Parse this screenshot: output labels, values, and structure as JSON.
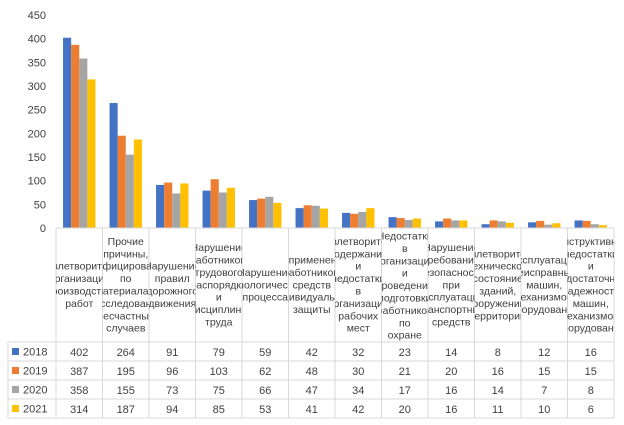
{
  "chart_data": {
    "type": "bar",
    "title": "",
    "xlabel": "",
    "ylabel": "",
    "ylim": [
      0,
      450
    ],
    "yticks": [
      0,
      50,
      100,
      150,
      200,
      250,
      300,
      350,
      400,
      450
    ],
    "grid": false,
    "legend": "data-table-left",
    "categories": [
      "Неудовлетворительная организация производства работ",
      "Прочие причины, квалифицированные по материалам расследования несчастных случаев",
      "Нарушение правил дорожного движения",
      "Нарушение работником трудового распорядка и дисциплины труда",
      "Нарушение технологического процесса",
      "Неприменение работником средств индивидуальной защиты",
      "Неудовлетворительное содержание и недостатки в организации рабочих мест",
      "Недостатки в организации и проведении подготовки работников по охране труда",
      "Нарушение требований безопасности при эксплуатации транспортных средств",
      "Неудовлетворительное техническое состояние зданий, сооружений, территории",
      "Эксплуатация неисправных машин, механизмов, оборудования",
      "Конструктивные недостатки и недостаточная надежность машин, механизмов, оборудования"
    ],
    "series": [
      {
        "name": "2018",
        "color": "#4472c4",
        "values": [
          402,
          264,
          91,
          79,
          59,
          42,
          32,
          23,
          14,
          8,
          12,
          16
        ]
      },
      {
        "name": "2019",
        "color": "#ed7d31",
        "values": [
          387,
          195,
          96,
          103,
          62,
          48,
          30,
          21,
          20,
          16,
          15,
          15
        ]
      },
      {
        "name": "2020",
        "color": "#a5a5a5",
        "values": [
          358,
          155,
          73,
          75,
          66,
          47,
          34,
          17,
          16,
          14,
          7,
          8
        ]
      },
      {
        "name": "2021",
        "color": "#ffc000",
        "values": [
          314,
          187,
          94,
          85,
          53,
          41,
          42,
          20,
          16,
          11,
          10,
          6
        ]
      }
    ]
  }
}
